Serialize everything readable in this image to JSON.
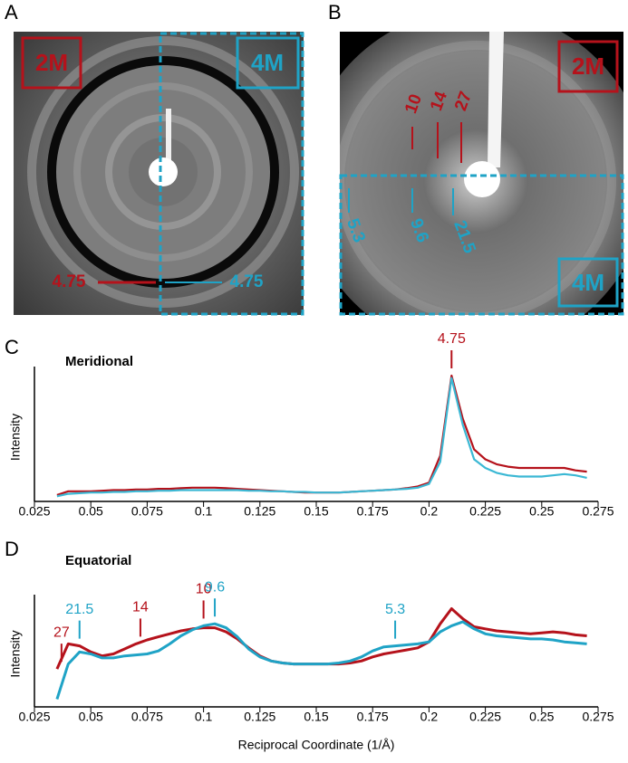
{
  "figure": {
    "panels": [
      "A",
      "B",
      "C",
      "D"
    ],
    "image_a": {
      "labels": [
        "2M",
        "4M"
      ],
      "reflections": [
        "4.75",
        "4.75"
      ]
    },
    "image_b": {
      "labels": [
        "2M",
        "4M"
      ],
      "red_reflections": [
        "10",
        "14",
        "27"
      ],
      "blue_reflections": [
        "5.3",
        "9.6",
        "21.5"
      ]
    }
  },
  "chart_data": [
    {
      "type": "line",
      "title": "Meridional",
      "ylabel": "Intensity",
      "x": [
        0.035,
        0.04,
        0.045,
        0.05,
        0.055,
        0.06,
        0.065,
        0.07,
        0.075,
        0.08,
        0.085,
        0.09,
        0.095,
        0.1,
        0.105,
        0.11,
        0.115,
        0.12,
        0.125,
        0.13,
        0.135,
        0.14,
        0.145,
        0.15,
        0.155,
        0.16,
        0.165,
        0.17,
        0.175,
        0.18,
        0.185,
        0.19,
        0.195,
        0.2,
        0.205,
        0.21,
        0.215,
        0.22,
        0.225,
        0.23,
        0.235,
        0.24,
        0.245,
        0.25,
        0.255,
        0.26,
        0.265,
        0.27
      ],
      "series": [
        {
          "color": "#b5121b",
          "values": [
            3,
            6,
            6,
            6,
            6.5,
            7,
            7,
            7.5,
            7.5,
            8,
            8,
            8.5,
            9,
            9,
            9,
            8.5,
            8,
            7.5,
            7,
            6.5,
            6,
            5.5,
            5,
            5,
            5,
            5,
            5.5,
            6,
            6.5,
            7,
            7.5,
            8.5,
            10,
            13,
            35,
            100,
            65,
            40,
            32,
            28,
            26,
            25,
            25,
            25,
            25,
            25,
            23,
            22
          ]
        },
        {
          "color": "#3bb8d4",
          "values": [
            2,
            4,
            4.5,
            5,
            5,
            5.5,
            5.5,
            6,
            6,
            6.5,
            6.5,
            7,
            7,
            7,
            7,
            7,
            7,
            6.5,
            6.5,
            6,
            6,
            5.5,
            5.5,
            5,
            5,
            5,
            5.5,
            6,
            6.5,
            7,
            7.5,
            8,
            9,
            12,
            30,
            98,
            60,
            32,
            25,
            21,
            19,
            18,
            18,
            18,
            19,
            20,
            19,
            17
          ]
        }
      ],
      "xlim": [
        0.025,
        0.275
      ],
      "xticks": [
        0.025,
        0.05,
        0.075,
        0.1,
        0.125,
        0.15,
        0.175,
        0.2,
        0.225,
        0.25,
        0.275
      ],
      "ylim": [
        0,
        100
      ],
      "annotations": [
        {
          "text": "4.75",
          "x": 0.21,
          "color": "#b5121b"
        }
      ]
    },
    {
      "type": "line",
      "title": "Equatorial",
      "ylabel": "Intensity",
      "xlabel": "Reciprocal Coordinate (1/Å)",
      "x": [
        0.035,
        0.04,
        0.045,
        0.05,
        0.055,
        0.06,
        0.065,
        0.07,
        0.075,
        0.08,
        0.085,
        0.09,
        0.095,
        0.1,
        0.105,
        0.11,
        0.115,
        0.12,
        0.125,
        0.13,
        0.135,
        0.14,
        0.145,
        0.15,
        0.155,
        0.16,
        0.165,
        0.17,
        0.175,
        0.18,
        0.185,
        0.19,
        0.195,
        0.2,
        0.205,
        0.21,
        0.215,
        0.22,
        0.225,
        0.23,
        0.235,
        0.24,
        0.245,
        0.25,
        0.255,
        0.26,
        0.265,
        0.27
      ],
      "series": [
        {
          "color": "#b5121b",
          "values": [
            35,
            60,
            58,
            52,
            48,
            50,
            55,
            60,
            64,
            67,
            70,
            73,
            75,
            76,
            76,
            72,
            65,
            56,
            48,
            43,
            41,
            40,
            40,
            40,
            40,
            40,
            41,
            43,
            47,
            50,
            52,
            54,
            56,
            62,
            80,
            95,
            85,
            77,
            75,
            73,
            72,
            71,
            70,
            71,
            72,
            71,
            69,
            68
          ]
        },
        {
          "color": "#1fa3c6",
          "values": [
            5,
            40,
            52,
            50,
            46,
            46,
            48,
            49,
            50,
            53,
            60,
            68,
            74,
            78,
            80,
            76,
            67,
            55,
            47,
            43,
            41,
            40,
            40,
            40,
            40,
            41,
            43,
            47,
            53,
            57,
            58,
            59,
            60,
            62,
            72,
            78,
            82,
            75,
            70,
            68,
            67,
            66,
            65,
            65,
            64,
            62,
            61,
            60
          ]
        }
      ],
      "xlim": [
        0.025,
        0.275
      ],
      "xticks": [
        0.025,
        0.05,
        0.075,
        0.1,
        0.125,
        0.15,
        0.175,
        0.2,
        0.225,
        0.25,
        0.275
      ],
      "ylim": [
        0,
        100
      ],
      "annotations": [
        {
          "text": "27",
          "x": 0.037,
          "color": "#b5121b"
        },
        {
          "text": "21.5",
          "x": 0.045,
          "color": "#1fa3c6"
        },
        {
          "text": "14",
          "x": 0.072,
          "color": "#b5121b"
        },
        {
          "text": "10",
          "x": 0.1,
          "color": "#b5121b"
        },
        {
          "text": "9.6",
          "x": 0.105,
          "color": "#1fa3c6"
        },
        {
          "text": "5.3",
          "x": 0.185,
          "color": "#1fa3c6"
        }
      ]
    }
  ]
}
